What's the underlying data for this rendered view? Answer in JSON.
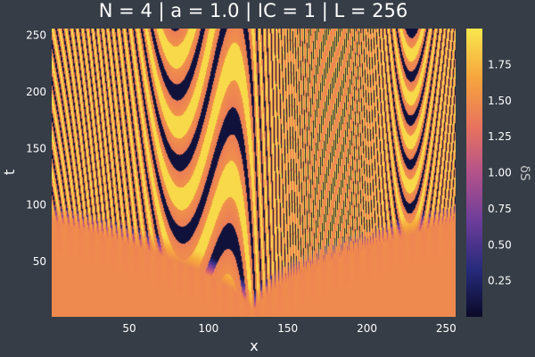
{
  "chart_data": {
    "type": "heatmap",
    "title": "N = 4 | a = 1.0 | IC = 1 | L = 256",
    "xlabel": "x",
    "ylabel": "t",
    "xlim": [
      1,
      256
    ],
    "ylim": [
      1,
      256
    ],
    "xticks": [
      50,
      100,
      150,
      200,
      250
    ],
    "yticks": [
      50,
      100,
      150,
      200,
      250
    ],
    "colorbar": {
      "label": "δS",
      "range": [
        0.0,
        2.0
      ],
      "ticks": [
        0.25,
        0.5,
        0.75,
        1.0,
        1.25,
        1.5,
        1.75
      ],
      "tick_labels": [
        "0.25",
        "0.50",
        "0.75",
        "1.00",
        "1.25",
        "1.50",
        "1.75"
      ],
      "colormap": "inferno-like",
      "colors": [
        "#0b0a27",
        "#262a7a",
        "#6b3d9a",
        "#b4528a",
        "#e8735e",
        "#f6a53d",
        "#f8e74d"
      ]
    },
    "field": {
      "background_value": 1.48,
      "origin_x": 128,
      "origin_t": 1,
      "front_t_at_edges": 85,
      "description_values": {
        "low": 0.02,
        "high": 1.98
      }
    },
    "legend": "none",
    "grid": false,
    "background": "#363d47"
  }
}
